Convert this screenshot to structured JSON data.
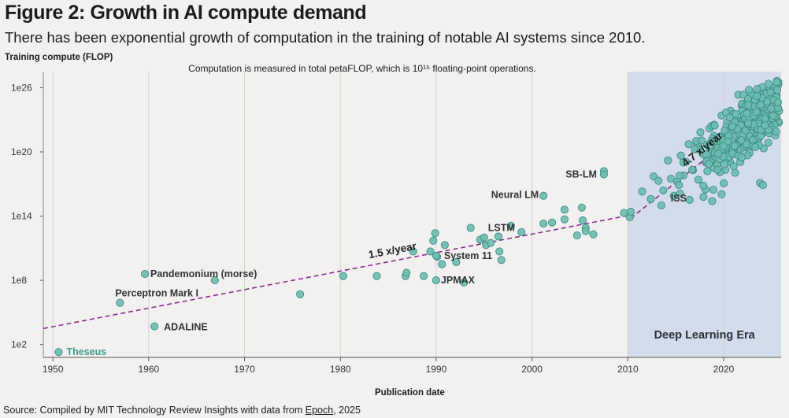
{
  "figure": {
    "title": "Figure 2: Growth in AI compute demand",
    "subtitle": "There has been exponential growth of computation in the training of notable AI systems since 2010."
  },
  "source": {
    "prefix": "Source: Compiled by MIT Technology Review Insights with data from ",
    "link": "Epoch",
    "suffix": ", 2025"
  },
  "chart_data": {
    "type": "scatter",
    "title": "Figure 2: Growth in AI compute demand",
    "ylabel": "Training compute (FLOP)",
    "xlabel": "Publication date",
    "yscale": "log",
    "xlim": [
      1949,
      2026
    ],
    "ylim_log10": [
      0.8,
      27.5
    ],
    "x_ticks": [
      1950,
      1960,
      1970,
      1980,
      1990,
      2000,
      2010,
      2020
    ],
    "x_tick_labels": [
      "1950",
      "1960",
      "1970",
      "1980",
      "1990",
      "2000",
      "2010",
      "2020"
    ],
    "y_ticks_log10": [
      2,
      8,
      14,
      20,
      26
    ],
    "y_tick_labels": [
      "1e2",
      "1e8",
      "1e14",
      "1e20",
      "1e26"
    ],
    "grid": "vertical",
    "colors": {
      "point_fill": "#6dbdb1",
      "point_stroke": "#3e8c81",
      "trend": "#8a2c8c",
      "era_band": "#d3dcea",
      "highlight_label": "#3e9b8c"
    },
    "note": "Computation is measured in total petaFLOP, which is 10¹⁵ floating-point operations.",
    "era": {
      "label": "Deep Learning Era",
      "start_year": 2010,
      "end_year": 2026
    },
    "trends": [
      {
        "label": "1.5 x/year",
        "start": [
          1949,
          3.5
        ],
        "end": [
          2010.3,
          14.1
        ]
      },
      {
        "label": "4.7 x/year",
        "start": [
          2010.3,
          13.8
        ],
        "end": [
          2025.8,
          24.8
        ]
      }
    ],
    "labeled_points": [
      {
        "name": "Theseus",
        "x": 1950.6,
        "y": 1.3,
        "highlight": true
      },
      {
        "name": "ADALINE",
        "x": 1960.6,
        "y": 3.7
      },
      {
        "name": "Perceptron Mark I",
        "x": 1957.0,
        "y": 5.9
      },
      {
        "name": "Pandemonium (morse)",
        "x": 1959.6,
        "y": 8.6
      },
      {
        "name": "JPMAX",
        "x": 1990.0,
        "y": 8.0
      },
      {
        "name": "System 11",
        "x": 1990.0,
        "y": 10.3
      },
      {
        "name": "LSTM",
        "x": 1995.0,
        "y": 12.0
      },
      {
        "name": "Neural LM",
        "x": 2001.2,
        "y": 15.9
      },
      {
        "name": "SB-LM",
        "x": 2007.5,
        "y": 17.9
      },
      {
        "name": "ISS",
        "x": 2015.3,
        "y": 15.8
      }
    ],
    "points": [
      [
        1966.9,
        8.0
      ],
      [
        1975.8,
        6.7
      ],
      [
        1980.3,
        8.4
      ],
      [
        1983.8,
        8.4
      ],
      [
        1986.8,
        8.4
      ],
      [
        1986.9,
        8.7
      ],
      [
        1987.6,
        10.7
      ],
      [
        1988.7,
        8.4
      ],
      [
        1989.4,
        10.7
      ],
      [
        1989.7,
        11.7
      ],
      [
        1989.9,
        12.4
      ],
      [
        1990.1,
        10.2
      ],
      [
        1990.6,
        9.5
      ],
      [
        1990.9,
        11.3
      ],
      [
        1992.1,
        9.7
      ],
      [
        1992.9,
        7.8
      ],
      [
        1993.6,
        12.9
      ],
      [
        1994.6,
        11.8
      ],
      [
        1995.2,
        11.3
      ],
      [
        1995.7,
        11.5
      ],
      [
        1996.5,
        12.1
      ],
      [
        1996.6,
        10.7
      ],
      [
        1996.8,
        9.9
      ],
      [
        1997.8,
        13.1
      ],
      [
        1998.9,
        12.5
      ],
      [
        2001.2,
        13.3
      ],
      [
        2002.1,
        13.4
      ],
      [
        2003.4,
        14.6
      ],
      [
        2003.4,
        13.7
      ],
      [
        2004.7,
        12.2
      ],
      [
        2005.2,
        14.8
      ],
      [
        2005.3,
        13.6
      ],
      [
        2005.6,
        12.9
      ],
      [
        2005.6,
        12.6
      ],
      [
        2006.4,
        12.3
      ],
      [
        2007.5,
        18.2
      ],
      [
        2009.6,
        14.3
      ],
      [
        2010.2,
        13.9
      ],
      [
        2010.3,
        14.4
      ],
      [
        2011.5,
        16.3
      ],
      [
        2012.4,
        15.6
      ],
      [
        2012.7,
        17.7
      ],
      [
        2013.2,
        17.3
      ],
      [
        2013.5,
        15.0
      ],
      [
        2013.7,
        16.4
      ],
      [
        2014.2,
        19.2
      ],
      [
        2014.5,
        17.5
      ],
      [
        2014.8,
        15.9
      ],
      [
        2015.8,
        17.8
      ],
      [
        2016.8,
        18.3
      ],
      [
        2017.2,
        20.8
      ],
      [
        2017.9,
        15.8
      ],
      [
        2018.1,
        16.5
      ],
      [
        2018.8,
        15.4
      ],
      [
        2019.0,
        21.5
      ],
      [
        2023.8,
        17.1
      ],
      [
        2024.1,
        16.9
      ]
    ]
  }
}
